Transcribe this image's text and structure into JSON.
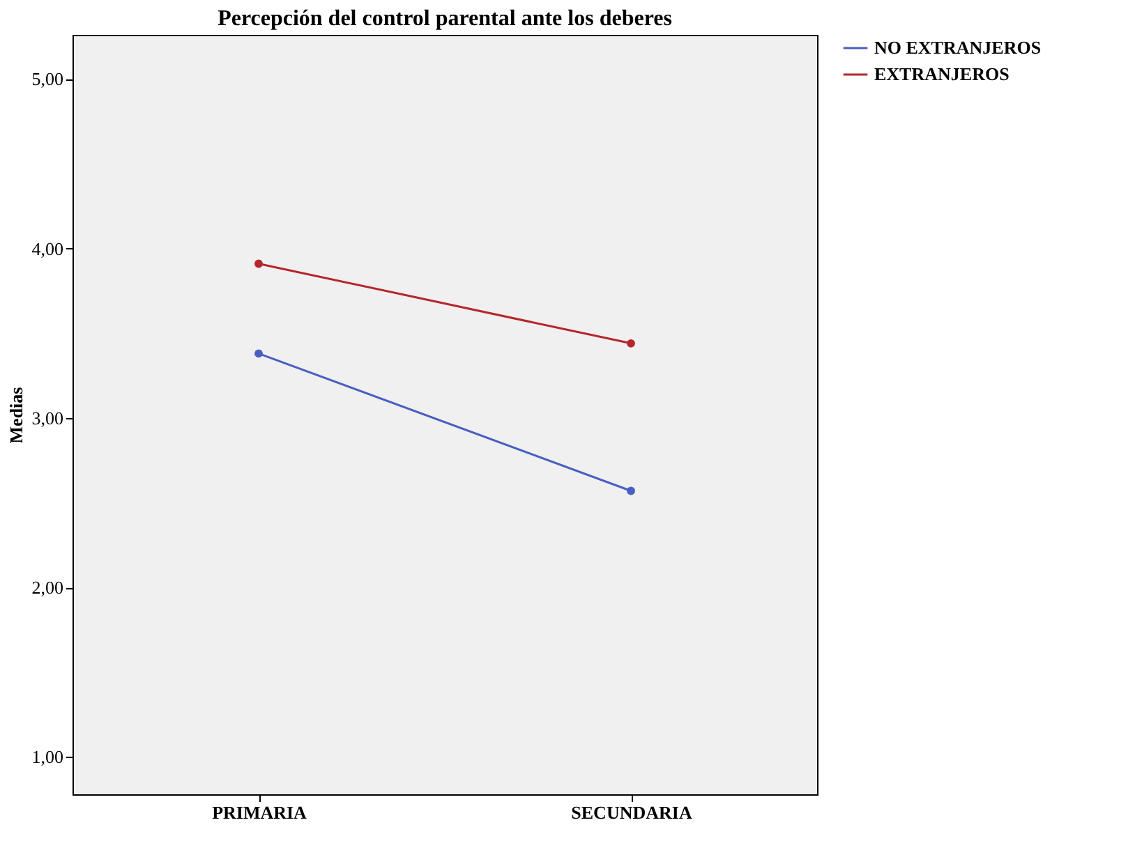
{
  "chart_data": {
    "type": "line",
    "title": "Percepción del control parental ante los deberes",
    "ylabel": "Medias",
    "categories": [
      "PRIMARIA",
      "SECUNDARIA"
    ],
    "series": [
      {
        "name": "NO EXTRANJEROS",
        "color": "#4a5fc1",
        "values": [
          3.38,
          2.57
        ]
      },
      {
        "name": "EXTRANJEROS",
        "color": "#b5262a",
        "values": [
          3.91,
          3.44
        ]
      }
    ],
    "ylim": [
      0.78,
      5.26
    ],
    "yticks": [
      {
        "value": 1,
        "label": "1,00"
      },
      {
        "value": 2,
        "label": "2,00"
      },
      {
        "value": 3,
        "label": "3,00"
      },
      {
        "value": 4,
        "label": "4,00"
      },
      {
        "value": 5,
        "label": "5,00"
      }
    ],
    "grid": false,
    "legend": "right",
    "marker": "circle",
    "line_style": "solid"
  }
}
